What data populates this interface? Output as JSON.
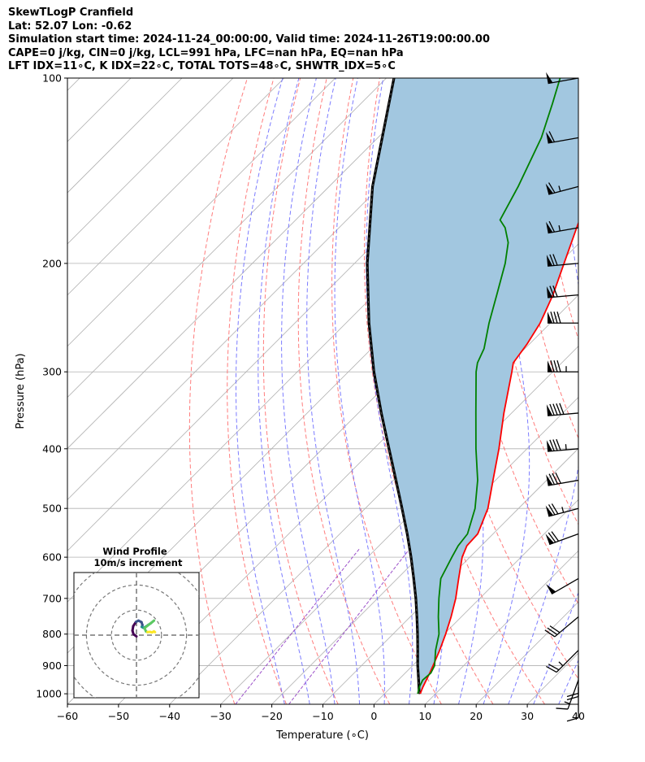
{
  "header": {
    "line1": "SkewTLogP Cranfield",
    "line2": "Lat: 52.07   Lon: -0.62",
    "line3": "Simulation start time: 2024-11-24_00:00:00, Valid time: 2024-11-26T19:00:00.00",
    "line4": "CAPE=0 j/kg, CIN=0 j/kg, LCL=991 hPa, LFC=nan hPa, EQ=nan hPa",
    "line5": "LFT IDX=11∘C, K IDX=22∘C, TOTAL TOTS=48∘C, SHWTR_IDX=5∘C"
  },
  "chart_data": {
    "type": "skewt-logp",
    "xlabel": "Temperature (∘C)",
    "ylabel": "Pressure (hPa)",
    "xlim": [
      -60,
      40
    ],
    "ylim": [
      1040,
      100
    ],
    "x_ticks": [
      "−60",
      "−50",
      "−40",
      "−30",
      "−20",
      "−10",
      "0",
      "10",
      "20",
      "30",
      "40"
    ],
    "y_ticks": [
      "100",
      "200",
      "300",
      "400",
      "500",
      "600",
      "700",
      "800",
      "900",
      "1000"
    ],
    "colors": {
      "temperature": "#ff0000",
      "dewpoint": "#008000",
      "parcel": "#000000",
      "cape_fill": "#a2c7e0",
      "dry_adiabats": "#ff6e6e",
      "moist_adiabats": "#6e6eff",
      "mixing_ratio": "#9b4fc9",
      "isotherms": "#b0b0b0"
    },
    "temperature": [
      {
        "p": 1000,
        "t": 7.0
      },
      {
        "p": 975,
        "t": 6.2
      },
      {
        "p": 950,
        "t": 5.5
      },
      {
        "p": 925,
        "t": 4.8
      },
      {
        "p": 900,
        "t": 4.0
      },
      {
        "p": 850,
        "t": 2.3
      },
      {
        "p": 800,
        "t": 0.3
      },
      {
        "p": 750,
        "t": -2.0
      },
      {
        "p": 700,
        "t": -4.7
      },
      {
        "p": 650,
        "t": -8.0
      },
      {
        "p": 600,
        "t": -11.5
      },
      {
        "p": 575,
        "t": -12.8
      },
      {
        "p": 550,
        "t": -13.0
      },
      {
        "p": 500,
        "t": -16.0
      },
      {
        "p": 450,
        "t": -20.5
      },
      {
        "p": 400,
        "t": -25.5
      },
      {
        "p": 350,
        "t": -31.5
      },
      {
        "p": 300,
        "t": -38.0
      },
      {
        "p": 290,
        "t": -39.5
      },
      {
        "p": 270,
        "t": -40.5
      },
      {
        "p": 250,
        "t": -42.0
      },
      {
        "p": 225,
        "t": -45.0
      },
      {
        "p": 200,
        "t": -49.0
      },
      {
        "p": 175,
        "t": -53.5
      },
      {
        "p": 150,
        "t": -58.5
      },
      {
        "p": 140,
        "t": -61.0
      },
      {
        "p": 125,
        "t": -65.5
      },
      {
        "p": 110,
        "t": -69.5
      },
      {
        "p": 100,
        "t": -72.5
      }
    ],
    "dewpoint": [
      {
        "p": 1000,
        "t": 6.5
      },
      {
        "p": 975,
        "t": 5.5
      },
      {
        "p": 950,
        "t": 4.8
      },
      {
        "p": 925,
        "t": 5.0
      },
      {
        "p": 900,
        "t": 4.3
      },
      {
        "p": 850,
        "t": 1.5
      },
      {
        "p": 800,
        "t": -1.0
      },
      {
        "p": 750,
        "t": -4.5
      },
      {
        "p": 700,
        "t": -8.0
      },
      {
        "p": 650,
        "t": -11.5
      },
      {
        "p": 600,
        "t": -13.5
      },
      {
        "p": 575,
        "t": -14.5
      },
      {
        "p": 550,
        "t": -15.0
      },
      {
        "p": 500,
        "t": -18.5
      },
      {
        "p": 450,
        "t": -23.5
      },
      {
        "p": 400,
        "t": -30.0
      },
      {
        "p": 350,
        "t": -37.0
      },
      {
        "p": 300,
        "t": -45.0
      },
      {
        "p": 290,
        "t": -46.5
      },
      {
        "p": 275,
        "t": -48.0
      },
      {
        "p": 250,
        "t": -52.0
      },
      {
        "p": 225,
        "t": -56.0
      },
      {
        "p": 200,
        "t": -60.5
      },
      {
        "p": 185,
        "t": -64.0
      },
      {
        "p": 175,
        "t": -67.5
      },
      {
        "p": 170,
        "t": -70.0
      },
      {
        "p": 150,
        "t": -73.0
      },
      {
        "p": 125,
        "t": -78.0
      },
      {
        "p": 110,
        "t": -82.5
      },
      {
        "p": 100,
        "t": -86.0
      }
    ],
    "parcel": [
      {
        "p": 1000,
        "t": 7.0
      },
      {
        "p": 991,
        "t": 6.3
      },
      {
        "p": 950,
        "t": 4.0
      },
      {
        "p": 900,
        "t": 1.0
      },
      {
        "p": 850,
        "t": -2.0
      },
      {
        "p": 800,
        "t": -5.2
      },
      {
        "p": 750,
        "t": -8.7
      },
      {
        "p": 700,
        "t": -12.5
      },
      {
        "p": 650,
        "t": -16.8
      },
      {
        "p": 600,
        "t": -21.5
      },
      {
        "p": 550,
        "t": -26.8
      },
      {
        "p": 500,
        "t": -32.8
      },
      {
        "p": 450,
        "t": -39.5
      },
      {
        "p": 400,
        "t": -47.0
      },
      {
        "p": 350,
        "t": -55.5
      },
      {
        "p": 300,
        "t": -65.0
      },
      {
        "p": 250,
        "t": -75.5
      },
      {
        "p": 200,
        "t": -87.5
      },
      {
        "p": 150,
        "t": -101.5
      },
      {
        "p": 100,
        "t": -118.5
      }
    ],
    "wind_barbs": [
      {
        "p": 100,
        "speed_kt": 50,
        "dir_deg": 260
      },
      {
        "p": 125,
        "speed_kt": 60,
        "dir_deg": 260
      },
      {
        "p": 150,
        "speed_kt": 65,
        "dir_deg": 255
      },
      {
        "p": 175,
        "speed_kt": 65,
        "dir_deg": 260
      },
      {
        "p": 200,
        "speed_kt": 70,
        "dir_deg": 265
      },
      {
        "p": 225,
        "speed_kt": 70,
        "dir_deg": 265
      },
      {
        "p": 250,
        "speed_kt": 80,
        "dir_deg": 270
      },
      {
        "p": 300,
        "speed_kt": 85,
        "dir_deg": 270
      },
      {
        "p": 350,
        "speed_kt": 90,
        "dir_deg": 265
      },
      {
        "p": 400,
        "speed_kt": 85,
        "dir_deg": 265
      },
      {
        "p": 450,
        "speed_kt": 80,
        "dir_deg": 260
      },
      {
        "p": 500,
        "speed_kt": 75,
        "dir_deg": 255
      },
      {
        "p": 550,
        "speed_kt": 70,
        "dir_deg": 250
      },
      {
        "p": 650,
        "speed_kt": 50,
        "dir_deg": 240
      },
      {
        "p": 750,
        "speed_kt": 30,
        "dir_deg": 230
      },
      {
        "p": 850,
        "speed_kt": 25,
        "dir_deg": 225
      },
      {
        "p": 900,
        "speed_kt": 20,
        "dir_deg": 180
      },
      {
        "p": 950,
        "speed_kt": 15,
        "dir_deg": 200
      },
      {
        "p": 975,
        "speed_kt": 10,
        "dir_deg": 180
      }
    ],
    "inset": {
      "title_line1": "Wind Profile",
      "title_line2": "10m/s increment",
      "hodograph": [
        {
          "u": 0.0,
          "v": -0.5
        },
        {
          "u": -1.2,
          "v": 0.4
        },
        {
          "u": -1.6,
          "v": 1.8
        },
        {
          "u": -1.3,
          "v": 3.6
        },
        {
          "u": -0.2,
          "v": 5.3
        },
        {
          "u": 0.8,
          "v": 5.8
        },
        {
          "u": 2.0,
          "v": 5.2
        },
        {
          "u": 2.4,
          "v": 4.0
        },
        {
          "u": 2.1,
          "v": 3.3
        },
        {
          "u": 2.8,
          "v": 2.9
        },
        {
          "u": 3.6,
          "v": 3.3
        },
        {
          "u": 4.6,
          "v": 4.0
        },
        {
          "u": 5.8,
          "v": 4.8
        },
        {
          "u": 7.0,
          "v": 5.8
        },
        {
          "u": 3.2,
          "v": 2.8
        },
        {
          "u": 3.8,
          "v": 1.5
        },
        {
          "u": 4.4,
          "v": 1.2
        },
        {
          "u": 5.4,
          "v": 1.3
        },
        {
          "u": 6.2,
          "v": 1.1
        },
        {
          "u": 7.0,
          "v": 1.5
        },
        {
          "u": 7.4,
          "v": 1.2
        }
      ],
      "hodograph_colors": [
        "#440154",
        "#3b528b",
        "#21908d",
        "#5dc963",
        "#fde725"
      ],
      "rings_ms": [
        10,
        20,
        30
      ],
      "range_ms": [
        -25,
        25
      ]
    }
  }
}
